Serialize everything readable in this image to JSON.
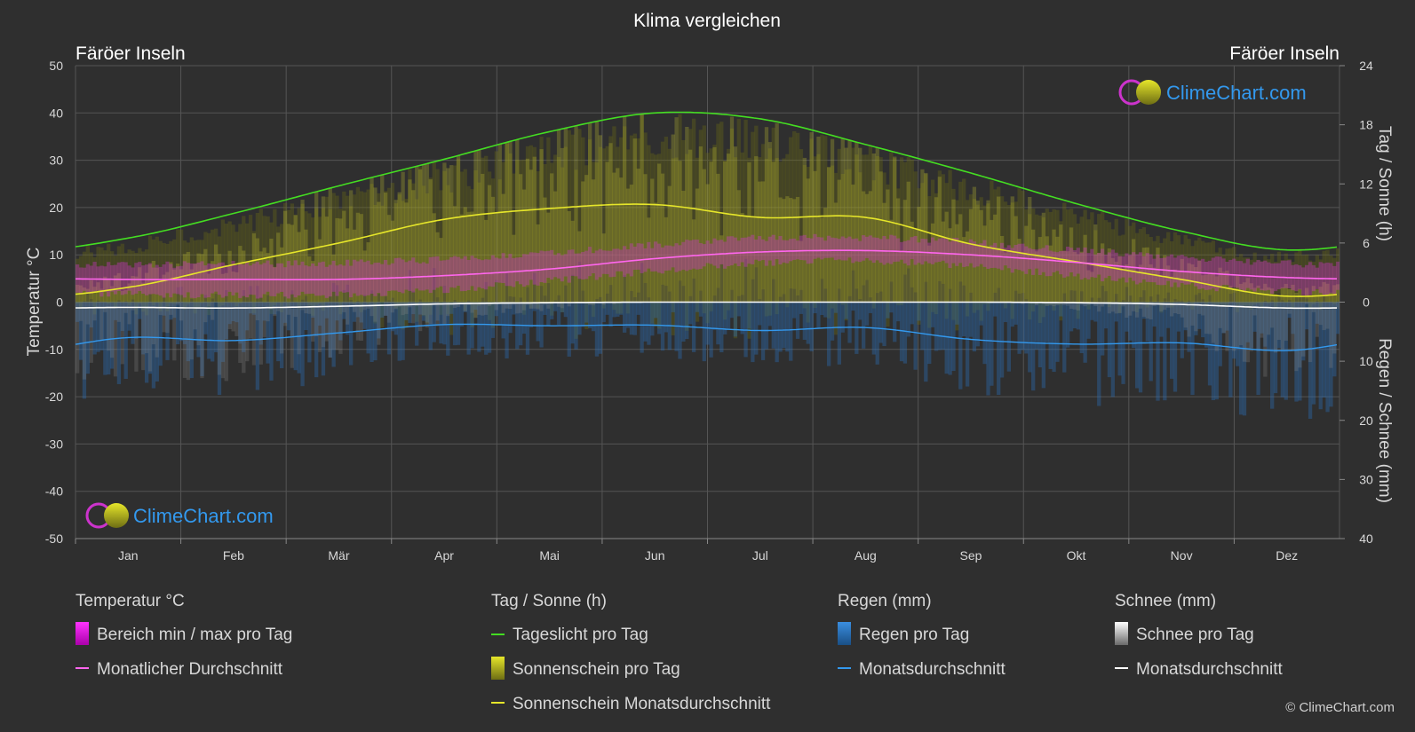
{
  "title": "Klima vergleichen",
  "location_left": "Färöer Inseln",
  "location_right": "Färöer Inseln",
  "watermark": "ClimeChart.com",
  "copyright": "© ClimeChart.com",
  "colors": {
    "background": "#2f2f2f",
    "daylight": "#44dd22",
    "sunshine_avg": "#e6e62a",
    "temp_avg": "#ff66ee",
    "temp_range": "#cc22cc",
    "rain": "#2a78c8",
    "rain_avg": "#3399ee",
    "snow": "#d0d0d0",
    "snow_avg": "#ffffff",
    "brand": "#3399ee"
  },
  "chart_data": {
    "type": "line",
    "categories": [
      "Jan",
      "Feb",
      "Mär",
      "Apr",
      "Mai",
      "Jun",
      "Jul",
      "Aug",
      "Sep",
      "Okt",
      "Nov",
      "Dez"
    ],
    "y_left": {
      "label": "Temperatur °C",
      "ticks": [
        50,
        40,
        30,
        20,
        10,
        0,
        -10,
        -20,
        -30,
        -40,
        -50
      ],
      "range": [
        -50,
        50
      ]
    },
    "y_right_top": {
      "label": "Tag / Sonne (h)",
      "ticks": [
        24,
        18,
        12,
        6,
        0
      ],
      "range": [
        0,
        24
      ]
    },
    "y_right_bottom": {
      "label": "Regen / Schnee (mm)",
      "ticks": [
        0,
        10,
        20,
        30,
        40
      ],
      "range": [
        0,
        40
      ]
    },
    "grid": true,
    "series": [
      {
        "name": "Tageslicht pro Tag",
        "unit": "h",
        "values": [
          6.5,
          9.0,
          11.8,
          14.5,
          17.3,
          19.2,
          18.6,
          16.0,
          13.1,
          10.0,
          7.2,
          5.3
        ]
      },
      {
        "name": "Sonnenschein Monatsdurchschnitt",
        "unit": "h",
        "values": [
          1.5,
          3.8,
          6.0,
          8.4,
          9.5,
          9.9,
          8.6,
          8.6,
          5.9,
          4.1,
          2.3,
          0.6
        ]
      },
      {
        "name": "Monatlicher Durchschnitt",
        "unit": "°C",
        "values": [
          4.8,
          4.8,
          4.8,
          5.6,
          7.0,
          9.2,
          10.6,
          10.9,
          10.0,
          8.4,
          6.5,
          5.2
        ]
      },
      {
        "name": "Bereich min / max pro Tag",
        "unit": "°C",
        "min": [
          2.5,
          2.2,
          2.4,
          3.4,
          5.2,
          7.4,
          9.0,
          9.4,
          8.4,
          6.3,
          4.3,
          3.0
        ],
        "max": [
          7.2,
          7.3,
          7.5,
          8.3,
          9.6,
          11.4,
          12.8,
          12.9,
          11.9,
          10.2,
          8.7,
          7.4
        ]
      },
      {
        "name": "Regen Monatsdurchschnitt",
        "unit": "mm",
        "values": [
          6.0,
          6.5,
          5.2,
          3.8,
          4.0,
          3.9,
          4.8,
          4.3,
          6.3,
          7.1,
          6.9,
          8.2
        ]
      },
      {
        "name": "Schnee Monatsdurchschnitt",
        "unit": "mm",
        "values": [
          0.9,
          1.0,
          0.7,
          0.3,
          0.1,
          0.0,
          0.0,
          0.0,
          0.0,
          0.1,
          0.4,
          1.0
        ]
      }
    ]
  },
  "legend": {
    "temp": {
      "title": "Temperatur °C",
      "items": [
        "Bereich min / max pro Tag",
        "Monatlicher Durchschnitt"
      ]
    },
    "sun": {
      "title": "Tag / Sonne (h)",
      "items": [
        "Tageslicht pro Tag",
        "Sonnenschein pro Tag",
        "Sonnenschein Monatsdurchschnitt"
      ]
    },
    "rain": {
      "title": "Regen (mm)",
      "items": [
        "Regen pro Tag",
        "Monatsdurchschnitt"
      ]
    },
    "snow": {
      "title": "Schnee (mm)",
      "items": [
        "Schnee pro Tag",
        "Monatsdurchschnitt"
      ]
    }
  }
}
